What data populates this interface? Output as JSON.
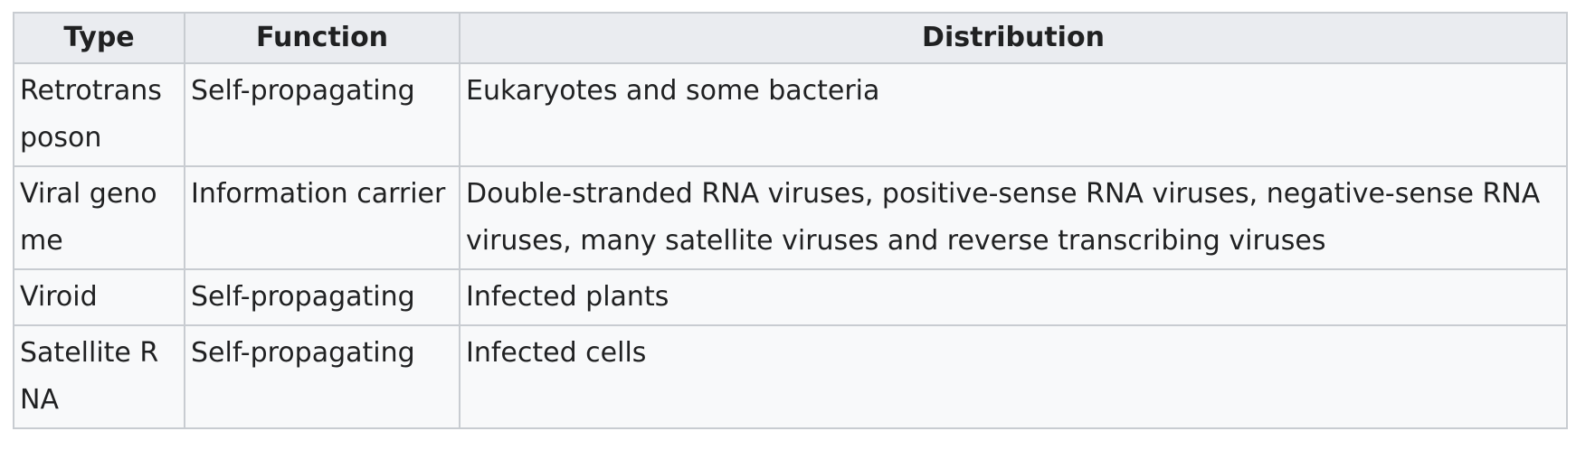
{
  "table": {
    "headers": [
      "Type",
      "Function",
      "Distribution"
    ],
    "rows": [
      {
        "type": "Retrotransposon",
        "function": "Self-propagating",
        "distribution": "Eukaryotes and some bacteria"
      },
      {
        "type": "Viral genome",
        "function": "Information carrier",
        "distribution": "Double-stranded RNA viruses, positive-sense RNA viruses, negative-sense RNA viruses, many satellite viruses and reverse transcribing viruses"
      },
      {
        "type": "Viroid",
        "function": "Self-propagating",
        "distribution": "Infected plants"
      },
      {
        "type": "Satellite RNA",
        "function": "Self-propagating",
        "distribution": "Infected cells"
      }
    ]
  }
}
